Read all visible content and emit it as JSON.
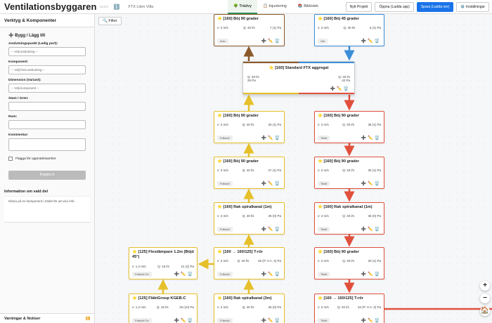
{
  "header": {
    "title": "Ventilationsbyggaren",
    "version": "v4.0.0",
    "info_icon": "ℹ️",
    "project": "FTX Liten Villa",
    "tabs": [
      "🌳 Trädvy",
      "📋 Injustering",
      "📚 Bibliotek"
    ],
    "active_tab": 0,
    "buttons": [
      "Nytt Projekt",
      "Öppna (Ladda upp)",
      "Spara (Ladda ner)",
      "⚙️ Inställningar"
    ]
  },
  "sidebar": {
    "title": "Verktyg & Komponenter",
    "section": "➕ Bygg / Lägg till",
    "selects": [
      {
        "label": "Anslutningspunkt (Ledig port):",
        "placeholder": "-- Välj anslutning --"
      },
      {
        "label": "Komponent:",
        "placeholder": "-- Välj först anslutning --"
      },
      {
        "label": "Dimension (Variant):",
        "placeholder": "-- Välj komponent --"
      }
    ],
    "inputs": [
      "Stam / Gren:",
      "Rum:"
    ],
    "comment": "Kommentar:",
    "flag": "Flagga för uppmärksamhet",
    "connect": "Koppla in",
    "info_title": "Information om vald del",
    "info_text": "Klicka på en komponent i trädet för att visa info.",
    "warnings": "Varningar & Notiser",
    "warnings_icon": "⚠"
  },
  "canvas": {
    "filter": "🔍 Filter",
    "icons": {
      "star": "⭐",
      "add": "➕",
      "edit": "✏️",
      "delete": "🗑️"
    },
    "zoom": [
      "+",
      "−",
      "🏠"
    ],
    "aggregate": {
      "title": "[160] Standard FTX aggregat",
      "left": {
        "q": "Q: 40 l/s",
        "pa": "26 Pa"
      },
      "right": {
        "q": "Q: 40 l/s",
        "pa": "42 Pa"
      }
    },
    "nodes": [
      {
        "title": "[160] Böj 90 grader",
        "v": "v: 2 m/s",
        "q": "Q: 40 l/s",
        "pa": "7 (1) Pa",
        "tag": "Avlu",
        "color": "#8b5a2b"
      },
      {
        "title": "[160] Böj 45 grader",
        "v": "v: 2 m/s",
        "q": "Q: 40 l/s",
        "pa": "5 (1) Pa",
        "tag": "Ute",
        "color": "#3b8fd9"
      },
      {
        "title": "[160] Böj 90 grader",
        "v": "v: 2 m/s",
        "q": "Q: 40 l/s",
        "pa": "26 (1) Pa",
        "tag": "Frånluft",
        "color": "#e6c02a"
      },
      {
        "title": "[160] Böj 90 grader",
        "v": "v: 2 m/s",
        "q": "Q: 40 l/s",
        "pa": "38 (1) Pa",
        "tag": "Tilluft",
        "color": "#e0503c"
      },
      {
        "title": "[160] Böj 90 grader",
        "v": "v: 2 m/s",
        "q": "Q: 40 l/s",
        "pa": "27 (1) Pa",
        "tag": "Frånluft",
        "color": "#e6c02a"
      },
      {
        "title": "[160] Böj 90 grader",
        "v": "v: 2 m/s",
        "q": "Q: 40 l/s",
        "pa": "36 (1) Pa",
        "tag": "Tilluft",
        "color": "#e0503c"
      },
      {
        "title": "[160] Rak spiralkanal (1m)",
        "v": "v: 2 m/s",
        "q": "Q: 40 l/s",
        "pa": "26 (0) Pa",
        "tag": "Frånluft",
        "color": "#e6c02a"
      },
      {
        "title": "[160] Rak spiralkanal (1m)",
        "v": "v: 2 m/s",
        "q": "Q: 40 l/s",
        "pa": "35 (0) Pa",
        "tag": "Tilluft",
        "color": "#e0503c"
      },
      {
        "title": "[125] Flexdämpare 1.2m (Böjd 45°)",
        "v": "v: 1.2 m/s",
        "q": "Q: 15 l/s",
        "pa": "21 (2) Pa",
        "tag": "Frånluft Öv",
        "color": "#e6c02a"
      },
      {
        "title": "[160 → 160/125] T-rör",
        "v": "v: 2 m/s",
        "q": "Q: 40 l/s",
        "pa": "26 (P: 0 A: 4) Pa",
        "tag": "Frånluft",
        "color": "#e6c02a"
      },
      {
        "title": "[160] Böj 90 grader",
        "v": "v: 2 m/s",
        "q": "Q: 40 l/s",
        "pa": "30 (1) Pa",
        "tag": "Tilluft",
        "color": "#e0503c"
      },
      {
        "title": "[125] FläktGroup KGEB-C",
        "v": "v: 1.2 m/s",
        "q": "Q: 15 l/s",
        "pa": "19 (10) Pa",
        "tag": "Frånluft Öv",
        "color": "#e6c02a"
      },
      {
        "title": "[160] Rak spiralkanal (3m)",
        "v": "v: 2 m/s",
        "q": "Q: 40 l/s",
        "pa": "26 (0) Pa",
        "tag": "Frånluft",
        "color": "#e6c02a"
      },
      {
        "title": "[160 → 160/125] T-rör",
        "v": "v: 2 m/s",
        "q": "Q: 40 l/s",
        "pa": "34 (P: 0 A: 3) Pa",
        "tag": "Tilluft",
        "color": "#e0503c"
      }
    ]
  }
}
